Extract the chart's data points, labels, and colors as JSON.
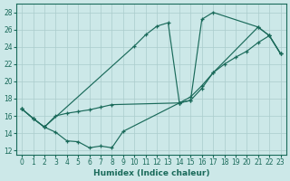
{
  "bg_color": "#cce8e8",
  "grid_color": "#aacccc",
  "line_color": "#1a6a5a",
  "xlabel": "Humidex (Indice chaleur)",
  "xlim": [
    -0.5,
    23.5
  ],
  "ylim": [
    11.5,
    29.0
  ],
  "xticks": [
    0,
    1,
    2,
    3,
    4,
    5,
    6,
    7,
    8,
    9,
    10,
    11,
    12,
    13,
    14,
    15,
    16,
    17,
    18,
    19,
    20,
    21,
    22,
    23
  ],
  "yticks": [
    12,
    14,
    16,
    18,
    20,
    22,
    24,
    26,
    28
  ],
  "s1_x": [
    0,
    1,
    2,
    3,
    4,
    5,
    6,
    7,
    8,
    9,
    14,
    15,
    16,
    17,
    21,
    22,
    23
  ],
  "s1_y": [
    16.8,
    15.7,
    14.7,
    14.1,
    13.1,
    13.0,
    12.3,
    12.5,
    12.3,
    14.2,
    17.5,
    17.8,
    27.2,
    28.0,
    26.3,
    25.3,
    23.2
  ],
  "s2_x": [
    0,
    1,
    2,
    10,
    11,
    12,
    13,
    14,
    15,
    16,
    17,
    21,
    22,
    23
  ],
  "s2_y": [
    16.8,
    15.7,
    14.7,
    24.1,
    25.4,
    26.4,
    26.8,
    17.5,
    17.8,
    19.2,
    21.0,
    26.3,
    25.3,
    23.2
  ],
  "s3_x": [
    0,
    1,
    2,
    3,
    4,
    5,
    6,
    7,
    8,
    14,
    15,
    16,
    17,
    18,
    19,
    20,
    21,
    22,
    23
  ],
  "s3_y": [
    16.8,
    15.7,
    14.7,
    16.0,
    16.3,
    16.5,
    16.7,
    17.0,
    17.3,
    17.5,
    18.2,
    19.5,
    21.0,
    22.0,
    22.8,
    23.5,
    24.5,
    25.3,
    23.2
  ]
}
